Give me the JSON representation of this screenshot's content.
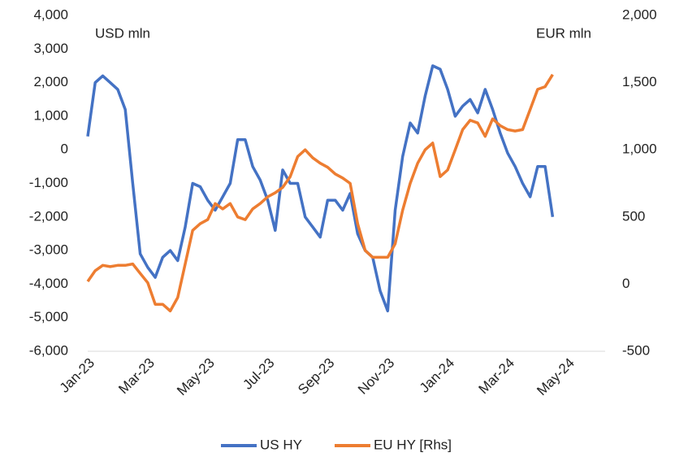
{
  "chart_data": {
    "type": "line",
    "annotations": [
      "USD mln",
      "EUR mln"
    ],
    "categories": [
      "Jan-23",
      null,
      null,
      null,
      null,
      null,
      null,
      null,
      "Mar-23",
      null,
      null,
      null,
      null,
      null,
      null,
      null,
      "May-23",
      null,
      null,
      null,
      null,
      null,
      null,
      null,
      "Jul-23",
      null,
      null,
      null,
      null,
      null,
      null,
      null,
      "Sep-23",
      null,
      null,
      null,
      null,
      null,
      null,
      null,
      "Nov-23",
      null,
      null,
      null,
      null,
      null,
      null,
      null,
      "Jan-24",
      null,
      null,
      null,
      null,
      null,
      null,
      null,
      "Mar-24",
      null,
      null,
      null,
      null,
      null,
      null,
      null,
      "May-24",
      null,
      null,
      null,
      null,
      null
    ],
    "series": [
      {
        "name": "US HY",
        "color": "#4472c4",
        "axis": "y",
        "values": [
          400,
          2000,
          2200,
          2000,
          1800,
          1200,
          -1000,
          -3100,
          -3500,
          -3800,
          -3200,
          -3000,
          -3300,
          -2300,
          -1000,
          -1100,
          -1500,
          -1800,
          -1400,
          -1000,
          300,
          300,
          -500,
          -900,
          -1500,
          -2400,
          -600,
          -1000,
          -1000,
          -2000,
          -2300,
          -2600,
          -1500,
          -1500,
          -1800,
          -1300,
          -2500,
          -3000,
          -3200,
          -4200,
          -4800,
          -1800,
          -200,
          800,
          500,
          1600,
          2500,
          2400,
          1800,
          1000,
          1300,
          1500,
          1100,
          1800,
          1200,
          500,
          -100,
          -500,
          -1000,
          -1400,
          -500,
          -500,
          -2000,
          null,
          null,
          null,
          null,
          null,
          null,
          null
        ]
      },
      {
        "name": "EU HY [Rhs]",
        "color": "#ed7d31",
        "axis": "y2",
        "values": [
          20,
          100,
          140,
          130,
          140,
          140,
          150,
          80,
          10,
          -150,
          -150,
          -200,
          -100,
          150,
          400,
          450,
          480,
          600,
          560,
          600,
          500,
          480,
          560,
          600,
          650,
          680,
          720,
          800,
          950,
          1000,
          940,
          900,
          870,
          820,
          790,
          750,
          450,
          250,
          200,
          200,
          200,
          300,
          550,
          750,
          900,
          1000,
          1050,
          800,
          850,
          1000,
          1150,
          1220,
          1200,
          1100,
          1230,
          1180,
          1150,
          1140,
          1150,
          1300,
          1450,
          1470,
          1560,
          null,
          null,
          null,
          null,
          null,
          null,
          null
        ]
      }
    ],
    "ylim": [
      -6000,
      4000
    ],
    "yticks": [
      {
        "value": -6000,
        "label": "-6,000"
      },
      {
        "value": -5000,
        "label": "-5,000"
      },
      {
        "value": -4000,
        "label": "-4,000"
      },
      {
        "value": -3000,
        "label": "-3,000"
      },
      {
        "value": -2000,
        "label": "-2,000"
      },
      {
        "value": -1000,
        "label": "-1,000"
      },
      0,
      {
        "value": 1000,
        "label": "1,000"
      },
      {
        "value": 2000,
        "label": "2,000"
      },
      {
        "value": 3000,
        "label": "3,000"
      },
      {
        "value": 4000,
        "label": "4,000"
      }
    ],
    "y2lim": [
      -500,
      2000
    ],
    "y2ticks": [
      -500,
      0,
      500,
      {
        "value": 1000,
        "label": "1,000"
      },
      {
        "value": 1500,
        "label": "1,500"
      },
      {
        "value": 2000,
        "label": "2,000"
      }
    ],
    "legend": "bottom",
    "grid": false
  }
}
